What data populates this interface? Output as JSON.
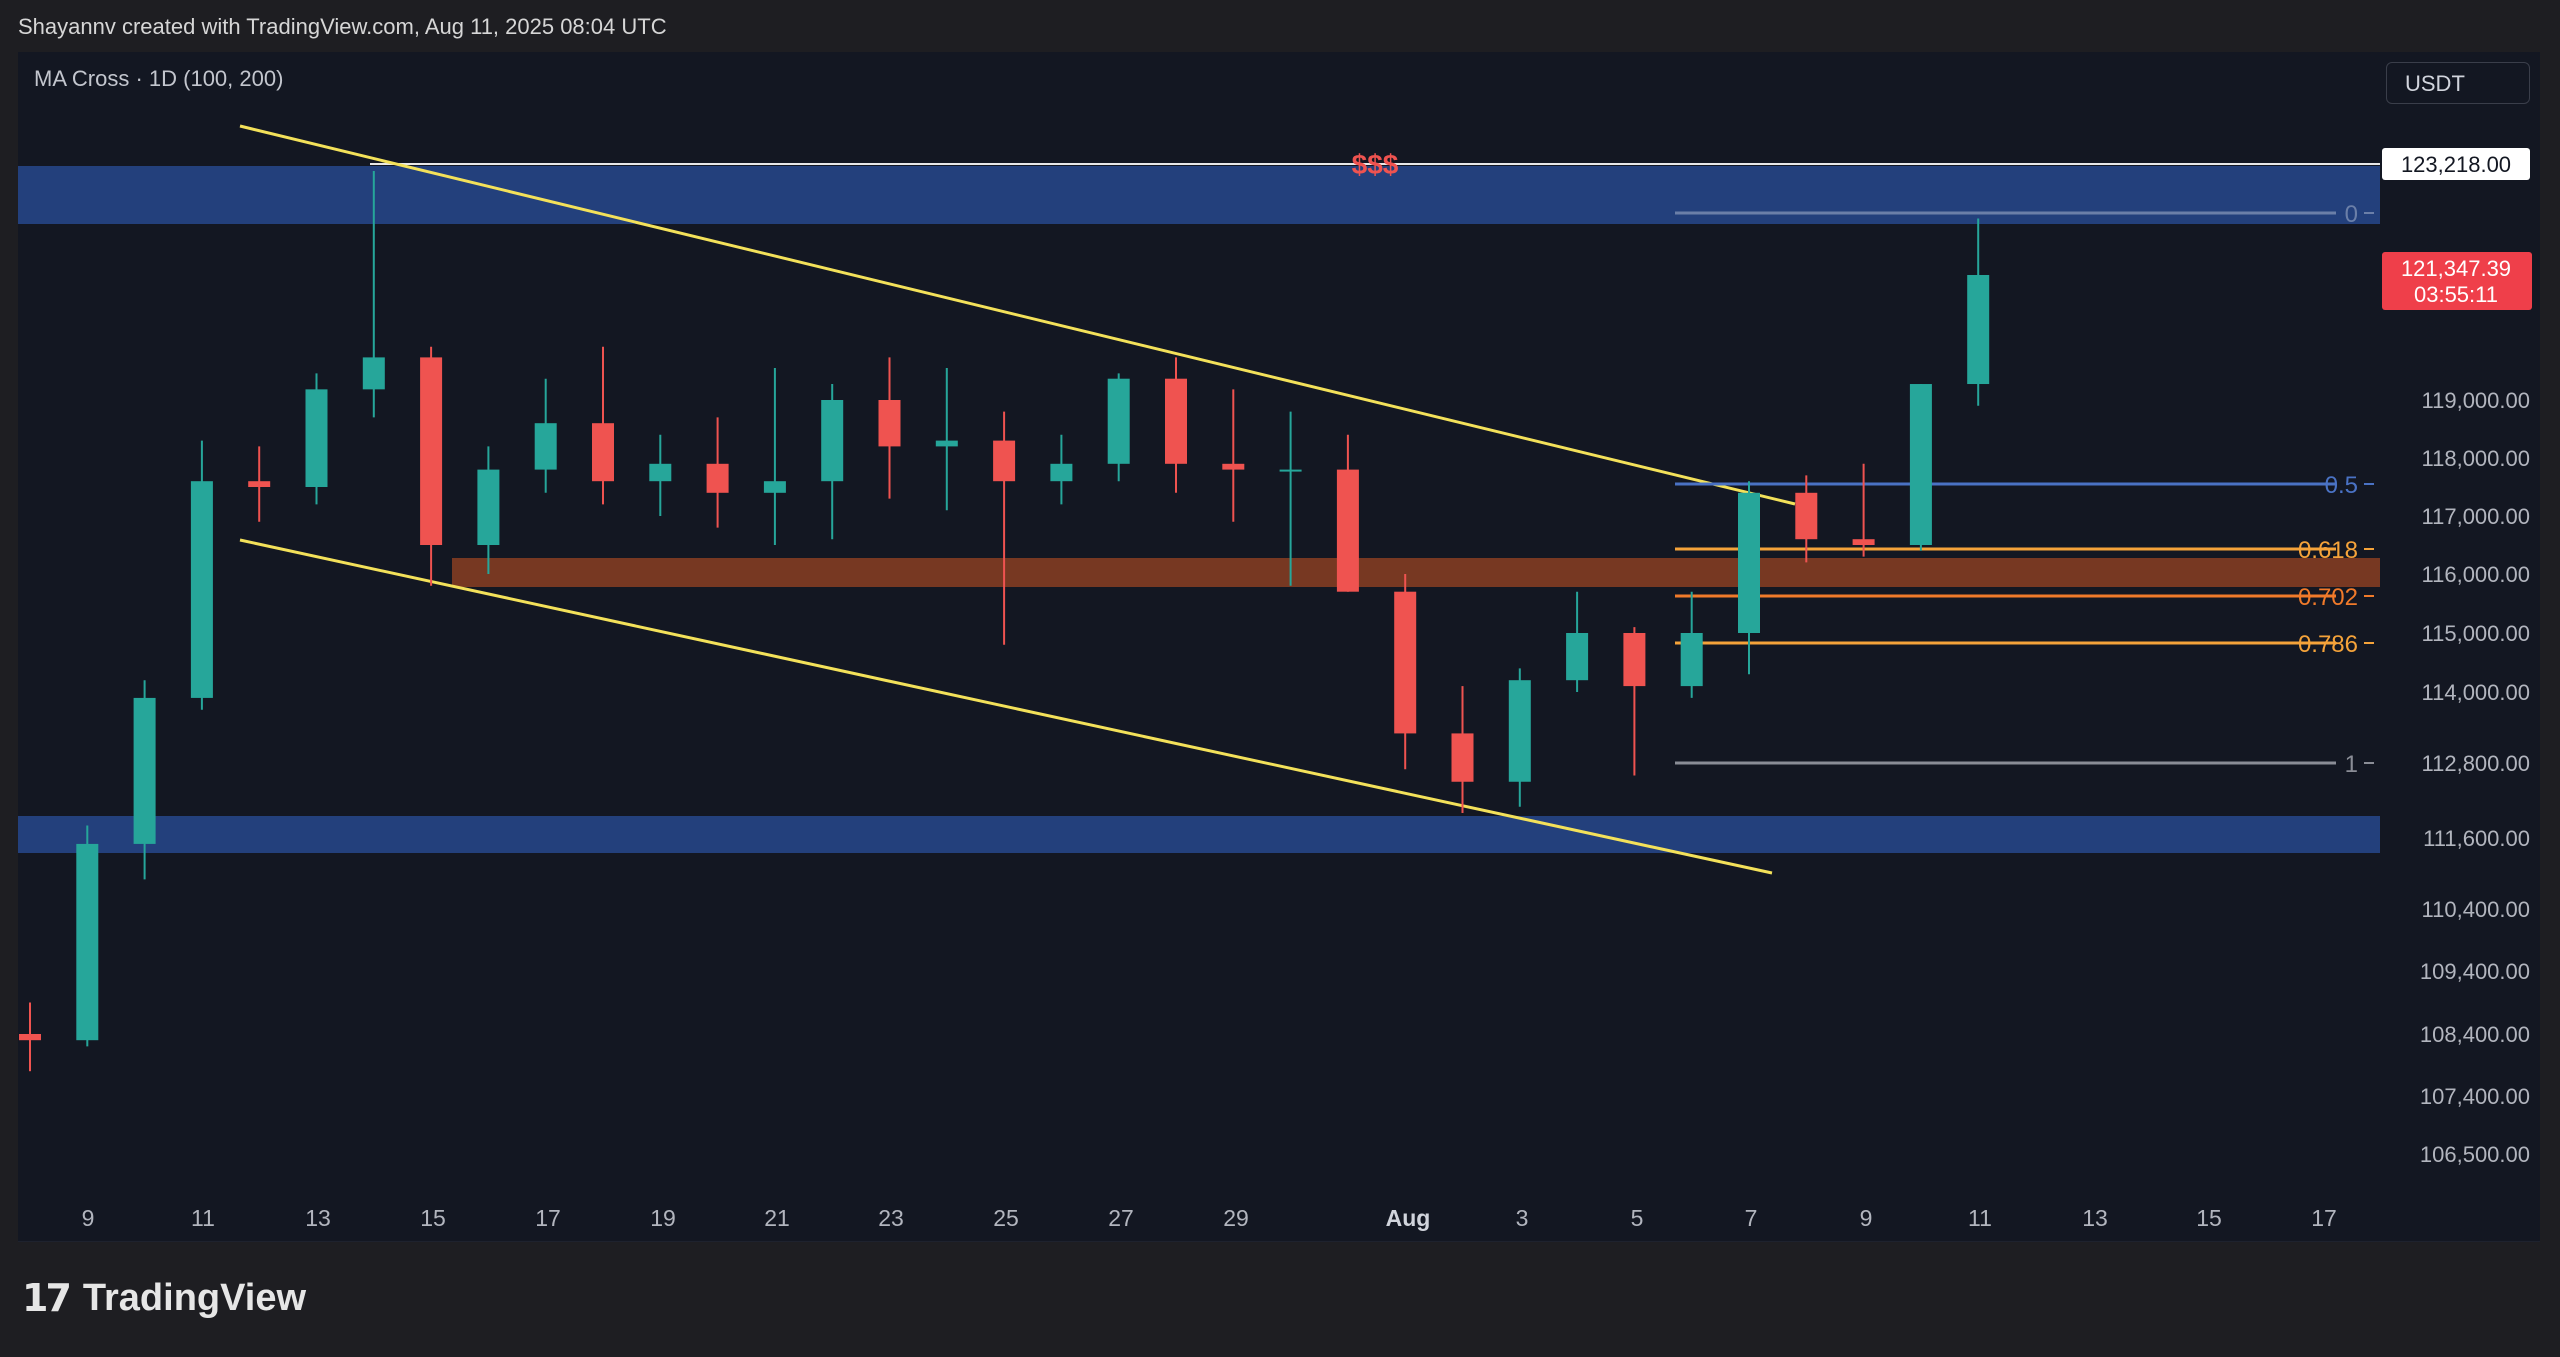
{
  "header": {
    "attribution": "Shayannv created with TradingView.com, Aug 11, 2025 08:04 UTC",
    "indicator": "MA Cross · 1D (100, 200)",
    "currency": "USDT"
  },
  "footer": {
    "brand": "TradingView"
  },
  "chart_data": {
    "type": "candlestick",
    "x_ticks": [
      "9",
      "11",
      "13",
      "15",
      "17",
      "19",
      "21",
      "23",
      "25",
      "27",
      "29",
      "Aug",
      "3",
      "5",
      "7",
      "9",
      "11",
      "13",
      "15",
      "17"
    ],
    "y_ticks": [
      "119,000.00",
      "118,000.00",
      "117,000.00",
      "116,000.00",
      "115,000.00",
      "114,000.00",
      "112,800.00",
      "111,600.00",
      "110,400.00",
      "109,400.00",
      "108,400.00",
      "107,400.00",
      "106,500.00"
    ],
    "price_labels": {
      "top_level": "123,218.00",
      "last_price": "121,347.39",
      "countdown": "03:55:11"
    },
    "fib_levels": [
      {
        "label": "0",
        "color": "#6b7fa8"
      },
      {
        "label": "0.5",
        "color": "#4a72c4"
      },
      {
        "label": "0.618",
        "color": "#f5a33a"
      },
      {
        "label": "0.702",
        "color": "#f07a2a"
      },
      {
        "label": "0.786",
        "color": "#f5a33a"
      },
      {
        "label": "1",
        "color": "#8a8d96"
      }
    ],
    "annotation": "$$$",
    "colors": {
      "up": "#26a69a",
      "down": "#ef5350",
      "channel": "#f3e15a",
      "zone": "#2a4f9b",
      "demand": "#8a3e22"
    },
    "candles": [
      {
        "t": "Jul 8",
        "o": 108400,
        "h": 108900,
        "l": 107800,
        "c": 108300
      },
      {
        "t": "Jul 9",
        "o": 108300,
        "h": 111800,
        "l": 108200,
        "c": 111500
      },
      {
        "t": "Jul 10",
        "o": 111500,
        "h": 114200,
        "l": 110900,
        "c": 113900
      },
      {
        "t": "Jul 11",
        "o": 113900,
        "h": 118300,
        "l": 113700,
        "c": 117600
      },
      {
        "t": "Jul 12",
        "o": 117600,
        "h": 118200,
        "l": 116900,
        "c": 117500
      },
      {
        "t": "Jul 13",
        "o": 117500,
        "h": 119500,
        "l": 117200,
        "c": 119200
      },
      {
        "t": "Jul 14",
        "o": 119200,
        "h": 123100,
        "l": 118700,
        "c": 119800
      },
      {
        "t": "Jul 15",
        "o": 119800,
        "h": 120000,
        "l": 115800,
        "c": 116500
      },
      {
        "t": "Jul 16",
        "o": 116500,
        "h": 118200,
        "l": 116000,
        "c": 117800
      },
      {
        "t": "Jul 17",
        "o": 117800,
        "h": 119400,
        "l": 117400,
        "c": 118600
      },
      {
        "t": "Jul 18",
        "o": 118600,
        "h": 120000,
        "l": 117200,
        "c": 117600
      },
      {
        "t": "Jul 19",
        "o": 117600,
        "h": 118400,
        "l": 117000,
        "c": 117900
      },
      {
        "t": "Jul 20",
        "o": 117900,
        "h": 118700,
        "l": 116800,
        "c": 117400
      },
      {
        "t": "Jul 21",
        "o": 117400,
        "h": 119600,
        "l": 116500,
        "c": 117600
      },
      {
        "t": "Jul 22",
        "o": 117600,
        "h": 119300,
        "l": 116600,
        "c": 119000
      },
      {
        "t": "Jul 23",
        "o": 119000,
        "h": 119800,
        "l": 117300,
        "c": 118200
      },
      {
        "t": "Jul 24",
        "o": 118200,
        "h": 119600,
        "l": 117100,
        "c": 118300
      },
      {
        "t": "Jul 25",
        "o": 118300,
        "h": 118800,
        "l": 114800,
        "c": 117600
      },
      {
        "t": "Jul 26",
        "o": 117600,
        "h": 118400,
        "l": 117200,
        "c": 117900
      },
      {
        "t": "Jul 27",
        "o": 117900,
        "h": 119500,
        "l": 117600,
        "c": 119400
      },
      {
        "t": "Jul 28",
        "o": 119400,
        "h": 119800,
        "l": 117400,
        "c": 117900
      },
      {
        "t": "Jul 29",
        "o": 117900,
        "h": 119200,
        "l": 116900,
        "c": 117800
      },
      {
        "t": "Jul 30",
        "o": 117800,
        "h": 118800,
        "l": 115800,
        "c": 117800
      },
      {
        "t": "Jul 31",
        "o": 117800,
        "h": 118400,
        "l": 115700,
        "c": 115700
      },
      {
        "t": "Aug 1",
        "o": 115700,
        "h": 116000,
        "l": 112700,
        "c": 113300
      },
      {
        "t": "Aug 2",
        "o": 113300,
        "h": 114100,
        "l": 112000,
        "c": 112500
      },
      {
        "t": "Aug 3",
        "o": 112500,
        "h": 114400,
        "l": 112100,
        "c": 114200
      },
      {
        "t": "Aug 4",
        "o": 114200,
        "h": 115700,
        "l": 114000,
        "c": 115000
      },
      {
        "t": "Aug 5",
        "o": 115000,
        "h": 115100,
        "l": 112600,
        "c": 114100
      },
      {
        "t": "Aug 6",
        "o": 114100,
        "h": 115700,
        "l": 113900,
        "c": 115000
      },
      {
        "t": "Aug 7",
        "o": 115000,
        "h": 117600,
        "l": 114300,
        "c": 117400
      },
      {
        "t": "Aug 8",
        "o": 117400,
        "h": 117700,
        "l": 116200,
        "c": 116600
      },
      {
        "t": "Aug 9",
        "o": 116600,
        "h": 117900,
        "l": 116300,
        "c": 116500
      },
      {
        "t": "Aug 10",
        "o": 116500,
        "h": 119300,
        "l": 116400,
        "c": 119300
      },
      {
        "t": "Aug 11",
        "o": 119300,
        "h": 122300,
        "l": 118900,
        "c": 121347
      }
    ]
  }
}
